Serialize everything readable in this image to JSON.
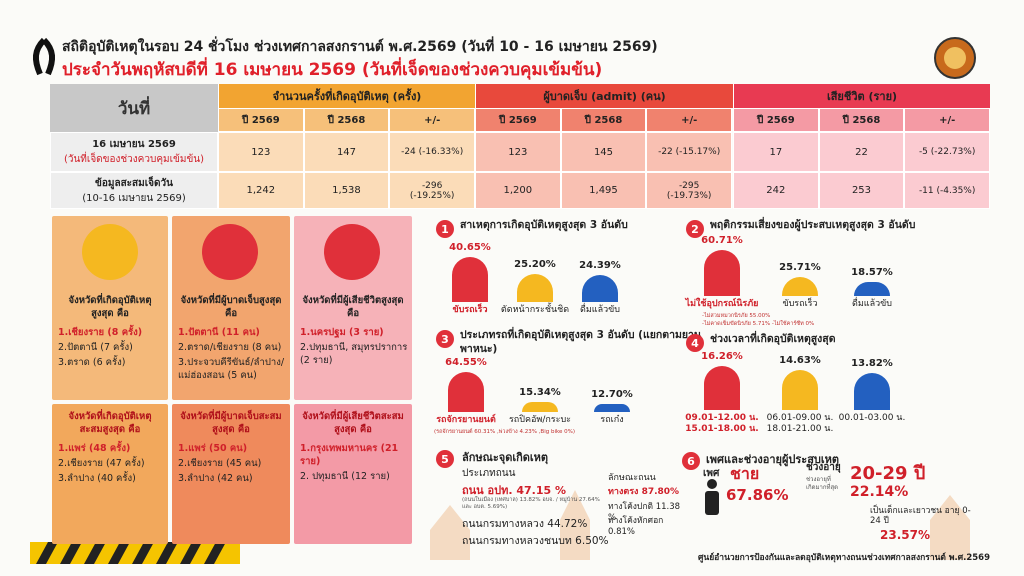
{
  "header": {
    "title": "สถิติอุบัติเหตุในรอบ 24 ชั่วโมง ช่วงเทศกาลสงกรานต์ พ.ศ.2569 (วันที่ 10 - 16 เมษายน 2569)",
    "subtitle": "ประจำวันพฤหัสบดีที่ 16 เมษายน 2569 (วันที่เจ็ดของช่วงควบคุมเข้มข้น)"
  },
  "table": {
    "columns": [
      "วันที่",
      "จำนวนครั้งที่เกิดอุบัติเหตุ (ครั้ง)",
      "ผู้บาดเจ็บ (admit) (คน)",
      "เสียชีวิต (ราย)"
    ],
    "subcolumns": [
      "ปี 2569",
      "ปี 2568",
      "+/-"
    ],
    "rows": [
      {
        "label": "16 เมษายน 2569",
        "sublabel": "(วันที่เจ็ดของช่วงควบคุมเข้มข้น)",
        "cells": [
          "123",
          "147",
          "-24 (-16.33%)",
          "123",
          "145",
          "-22 (-15.17%)",
          "17",
          "22",
          "-5 (-22.73%)"
        ]
      },
      {
        "label": "ข้อมูลสะสมเจ็ดวัน",
        "sublabel": "(10-16 เมษายน 2569)",
        "cells": [
          "1,242",
          "1,538",
          "-296 (-19.25%)",
          "1,200",
          "1,495",
          "-295 (-19.73%)",
          "242",
          "253",
          "-11 (-4.35%)"
        ]
      }
    ]
  },
  "provinces": [
    {
      "title": "จังหวัดที่เกิดอุบัติเหตุสูงสุด คือ",
      "items": [
        "1.เชียงราย (8 ครั้ง)",
        "2.ปัตตานี (7 ครั้ง)",
        "3.ตราด (6 ครั้ง)"
      ]
    },
    {
      "title": "จังหวัดที่มีผู้บาดเจ็บสูงสุด คือ",
      "items": [
        "1.ปัตตานี (11 คน)",
        "2.ตราด/เชียงราย (8 คน)",
        "3.ประจวบคีรีขันธ์/ลำปาง/แม่ฮ่องสอน (5 คน)"
      ]
    },
    {
      "title": "จังหวัดที่มีผู้เสียชีวิตสูงสุด คือ",
      "items": [
        "1.นครปฐม (3 ราย)",
        "2.ปทุมธานี, สมุทรปราการ (2 ราย)"
      ]
    },
    {
      "title": "จังหวัดที่เกิดอุบัติเหตุสะสมสูงสุด คือ",
      "items": [
        "1.แพร่ (48 ครั้ง)",
        "2.เชียงราย (47 ครั้ง)",
        "3.ลำปาง (40 ครั้ง)"
      ]
    },
    {
      "title": "จังหวัดที่มีผู้บาดเจ็บสะสมสูงสุด คือ",
      "items": [
        "1.แพร่ (50 คน)",
        "2.เชียงราย (45 คน)",
        "3.ลำปาง (42 คน)"
      ]
    },
    {
      "title": "จังหวัดที่มีผู้เสียชีวิตสะสมสูงสุด คือ",
      "items": [
        "1.กรุงเทพมหานคร (21 ราย)",
        "2. ปทุมธานี (12 ราย)"
      ]
    }
  ],
  "sections": [
    {
      "num": "1",
      "title": "สาเหตุการเกิดอุบัติเหตุสูงสุด 3 อันดับ",
      "categories": [
        "ขับรถเร็ว",
        "ตัดหน้ากระชั้นชิด",
        "ดื่มแล้วขับ"
      ],
      "values": [
        40.65,
        25.2,
        24.39
      ],
      "value_labels": [
        "40.65%",
        "25.20%",
        "24.39%"
      ],
      "colors": [
        "#e0303a",
        "#f5b820",
        "#2360c0"
      ]
    },
    {
      "num": "2",
      "title": "พฤติกรรมเสี่ยงของผู้ประสบเหตุสูงสุด 3 อันดับ",
      "categories": [
        "ไม่ใช้อุปกรณ์นิรภัย",
        "ขับรถเร็ว",
        "ดื่มแล้วขับ"
      ],
      "values": [
        60.71,
        25.71,
        18.57
      ],
      "value_labels": [
        "60.71%",
        "25.71%",
        "18.57%"
      ],
      "colors": [
        "#e0303a",
        "#f5b820",
        "#2360c0"
      ],
      "notes": [
        "-ไม่สวมหมวกนิรภัย 55.00%",
        "-ไม่คาดเข็มขัดนิรภัย 5.71% -ไม่ใช้คาร์ซีท 0%"
      ]
    },
    {
      "num": "3",
      "title": "ประเภทรถที่เกิดอุบัติเหตุสูงสุด 3 อันดับ (แยกตามยานพาหนะ)",
      "categories": [
        "รถจักรยานยนต์",
        "รถปิคอัพ/กระบะ",
        "รถเก๋ง"
      ],
      "values": [
        64.55,
        15.34,
        12.7
      ],
      "value_labels": [
        "64.55%",
        "15.34%",
        "12.70%"
      ],
      "colors": [
        "#e0303a",
        "#f5b820",
        "#2360c0"
      ],
      "notes": [
        "(รถจักรยานยนต์ 60.31% ,พ่วงข้าง 4.23% ,Big bike 0%)"
      ]
    },
    {
      "num": "4",
      "title": "ช่วงเวลาที่เกิดอุบัติเหตุสูงสุด",
      "categories": [
        "09.01-12.00 น.\n15.01-18.00 น.",
        "06.01-09.00 น.\n18.01-21.00 น.",
        "00.01-03.00 น."
      ],
      "values": [
        16.26,
        14.63,
        13.82
      ],
      "value_labels": [
        "16.26%",
        "14.63%",
        "13.82%"
      ],
      "colors": [
        "#e0303a",
        "#f5b820",
        "#2360c0"
      ]
    }
  ],
  "road": {
    "num": "5",
    "title": "ลักษณะจุดเกิดเหตุ",
    "type_title": "ประเภทถนน",
    "local": "ถนน อปท. 47.15 %",
    "local_detail": "(ถนนในเมือง (เทศบาล) 13.82% อบจ. / หมู่บ้าน 27.64% และ อบต. 5.69%)",
    "highway": "ถนนกรมทางหลวง 44.72%",
    "rural": "ถนนกรมทางหลวงชนบท 6.50%",
    "shape_title": "ลักษณะถนน",
    "straight": "ทางตรง 87.80%",
    "curve": "ทางโค้งปกติ 11.38 %",
    "sharp": "ทางโค้งหักศอก 0.81%"
  },
  "demographics": {
    "num": "6",
    "title": "เพศและช่วงอายุผู้ประสบเหตุ",
    "sex_title": "เพศ",
    "sex": "ชาย",
    "sex_pct": "67.86%",
    "age_title": "ช่วงอายุ",
    "age_note": "ช่วงอายุที่เกิดมากที่สุด",
    "age": "20-29 ปี",
    "age_pct": "22.14%",
    "youth": "เป็นเด็กและเยาวชน อายุ 0-24 ปี",
    "youth_pct": "23.57%"
  },
  "footer": "ศูนย์อำนวยการป้องกันและลดอุบัติเหตุทางถนนช่วงเทศกาลสงกรานต์ พ.ศ.2569"
}
